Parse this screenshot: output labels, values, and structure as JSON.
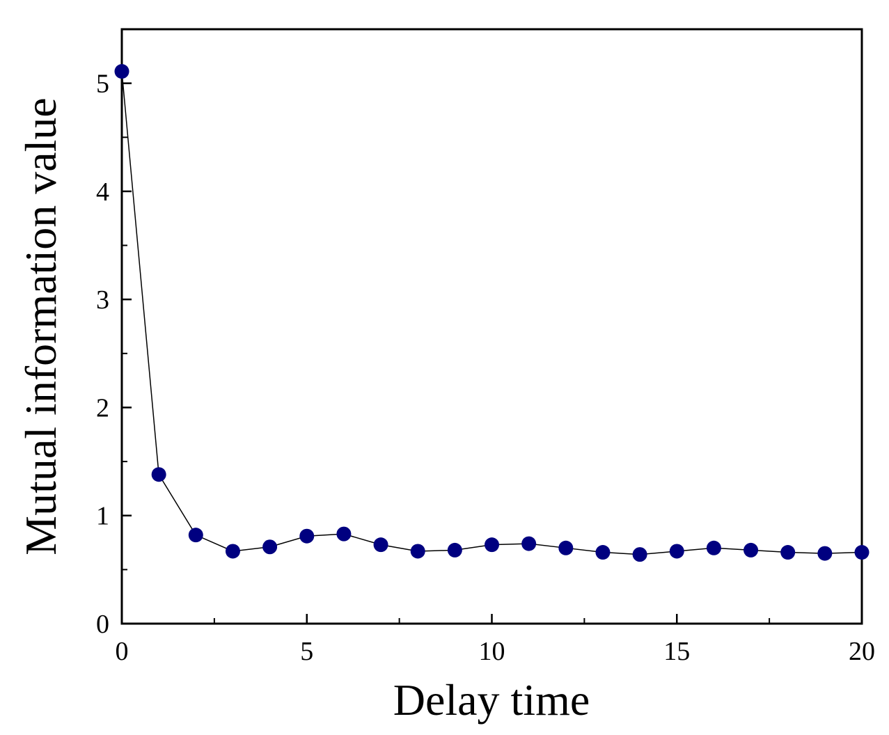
{
  "chart_data": {
    "type": "line",
    "xlabel": "Delay time",
    "ylabel": "Mutual information value",
    "xlim": [
      0,
      20
    ],
    "ylim": [
      0,
      5.5
    ],
    "x_ticks": [
      0,
      5,
      10,
      15,
      20
    ],
    "y_ticks": [
      0,
      1,
      2,
      3,
      4,
      5
    ],
    "x_minor_ticks": [
      2.5,
      7.5,
      12.5,
      17.5
    ],
    "y_minor_ticks": [
      0.5,
      1.5,
      2.5,
      3.5,
      4.5
    ],
    "grid": false,
    "marker_color": "#000080",
    "line_color": "#000000",
    "series": [
      {
        "x": [
          0,
          1,
          2,
          3,
          4,
          5,
          6,
          7,
          8,
          9,
          10,
          11,
          12,
          13,
          14,
          15,
          16,
          17,
          18,
          19,
          20
        ],
        "y": [
          5.11,
          1.38,
          0.82,
          0.67,
          0.71,
          0.81,
          0.83,
          0.73,
          0.67,
          0.68,
          0.73,
          0.74,
          0.7,
          0.66,
          0.64,
          0.67,
          0.7,
          0.68,
          0.66,
          0.65,
          0.66
        ]
      }
    ]
  }
}
